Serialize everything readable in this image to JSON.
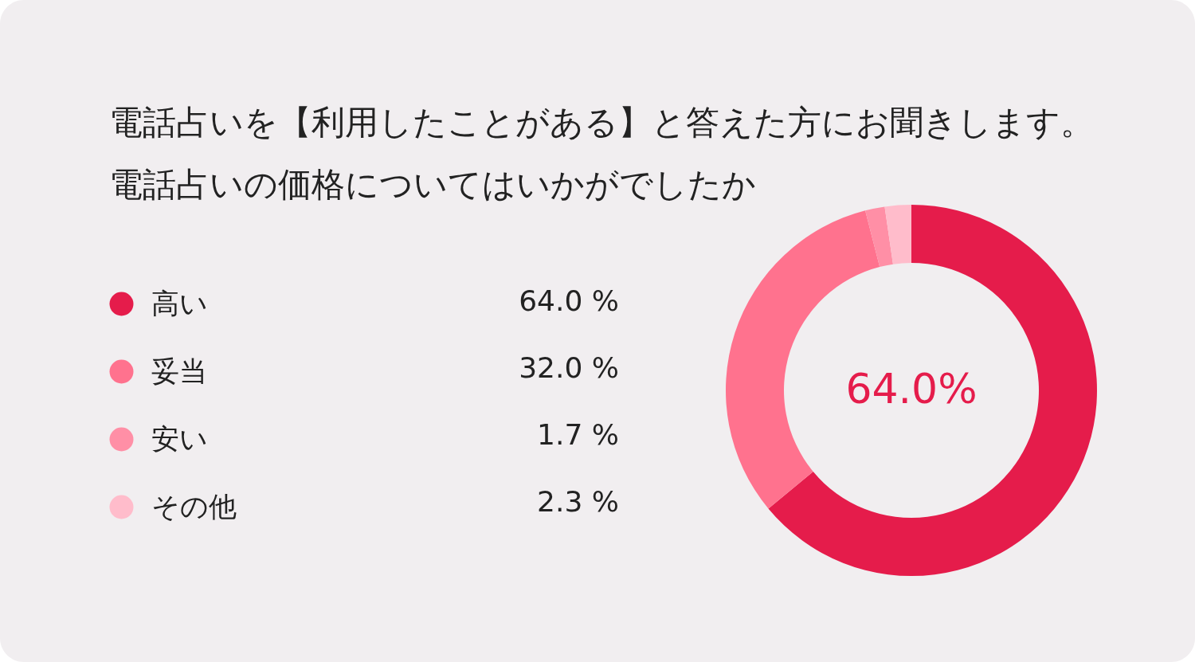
{
  "chart_data": {
    "type": "donut",
    "title": "電話占いを【利用したことがある】と答えた方にお聞きします。",
    "subtitle": "電話占いの価格についてはいかがでしたか",
    "categories": [
      "高い",
      "妥当",
      "安い",
      "その他"
    ],
    "values": [
      64.0,
      32.0,
      1.7,
      2.3
    ],
    "value_labels": [
      "64.0 %",
      "32.0 %",
      "1.7 %",
      "2.3 %"
    ],
    "colors": [
      "#e51c4b",
      "#ff728e",
      "#ff8fa6",
      "#ffbccb"
    ],
    "annotations": [
      "64.0%"
    ],
    "legend": "left"
  }
}
